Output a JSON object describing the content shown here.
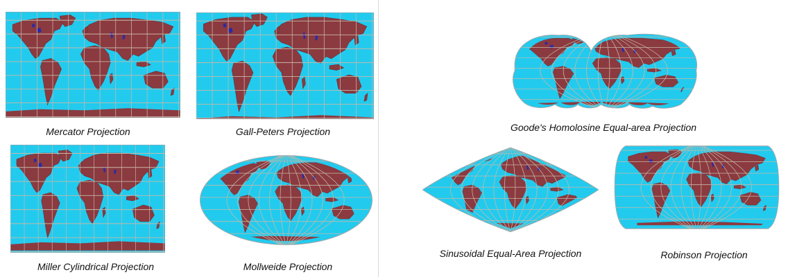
{
  "colors": {
    "ocean": "#22cbee",
    "land": "#8b3a40",
    "grid": "#c8b7a6",
    "lakes": "#2a2aa8",
    "caption": "#111111"
  },
  "maps": [
    {
      "id": "mercator",
      "caption": "Mercator Projection",
      "shape": "rectangle",
      "panel": "left"
    },
    {
      "id": "gall-peters",
      "caption": "Gall-Peters Projection",
      "shape": "rectangle",
      "panel": "left"
    },
    {
      "id": "miller",
      "caption": "Miller Cylindrical Projection",
      "shape": "rectangle",
      "panel": "left"
    },
    {
      "id": "mollweide",
      "caption": "Mollweide Projection",
      "shape": "ellipse",
      "panel": "left"
    },
    {
      "id": "goode",
      "caption": "Goode's Homolosine Equal-area Projection",
      "shape": "interrupted",
      "panel": "right"
    },
    {
      "id": "sinusoidal",
      "caption": "Sinusoidal Equal-Area Projection",
      "shape": "sinusoid",
      "panel": "right"
    },
    {
      "id": "robinson",
      "caption": "Robinson Projection",
      "shape": "rounded-rectangle",
      "panel": "right"
    }
  ]
}
